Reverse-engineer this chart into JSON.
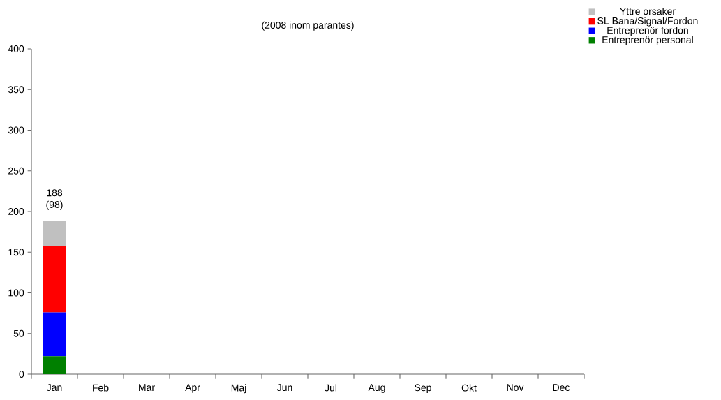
{
  "chart_data": {
    "type": "bar",
    "stacked": true,
    "title": "(2008 inom parantes)",
    "categories": [
      "Jan",
      "Feb",
      "Mar",
      "Apr",
      "Maj",
      "Jun",
      "Jul",
      "Aug",
      "Sep",
      "Okt",
      "Nov",
      "Dec"
    ],
    "series": [
      {
        "name": "Entreprenör personal",
        "color": "#008000",
        "values": [
          22,
          null,
          null,
          null,
          null,
          null,
          null,
          null,
          null,
          null,
          null,
          null
        ]
      },
      {
        "name": "Entreprenör fordon",
        "color": "#0000ff",
        "values": [
          54,
          null,
          null,
          null,
          null,
          null,
          null,
          null,
          null,
          null,
          null,
          null
        ]
      },
      {
        "name": "SL Bana/Signal/Fordon",
        "color": "#ff0000",
        "values": [
          81,
          null,
          null,
          null,
          null,
          null,
          null,
          null,
          null,
          null,
          null,
          null
        ]
      },
      {
        "name": "Yttre orsaker",
        "color": "#c0c0c0",
        "values": [
          31,
          null,
          null,
          null,
          null,
          null,
          null,
          null,
          null,
          null,
          null,
          null
        ]
      }
    ],
    "totals": [
      "188 (98)",
      null,
      null,
      null,
      null,
      null,
      null,
      null,
      null,
      null,
      null,
      null
    ],
    "ylim": [
      0,
      400
    ],
    "yticks": [
      0,
      50,
      100,
      150,
      200,
      250,
      300,
      350,
      400
    ],
    "legend": "top right"
  }
}
